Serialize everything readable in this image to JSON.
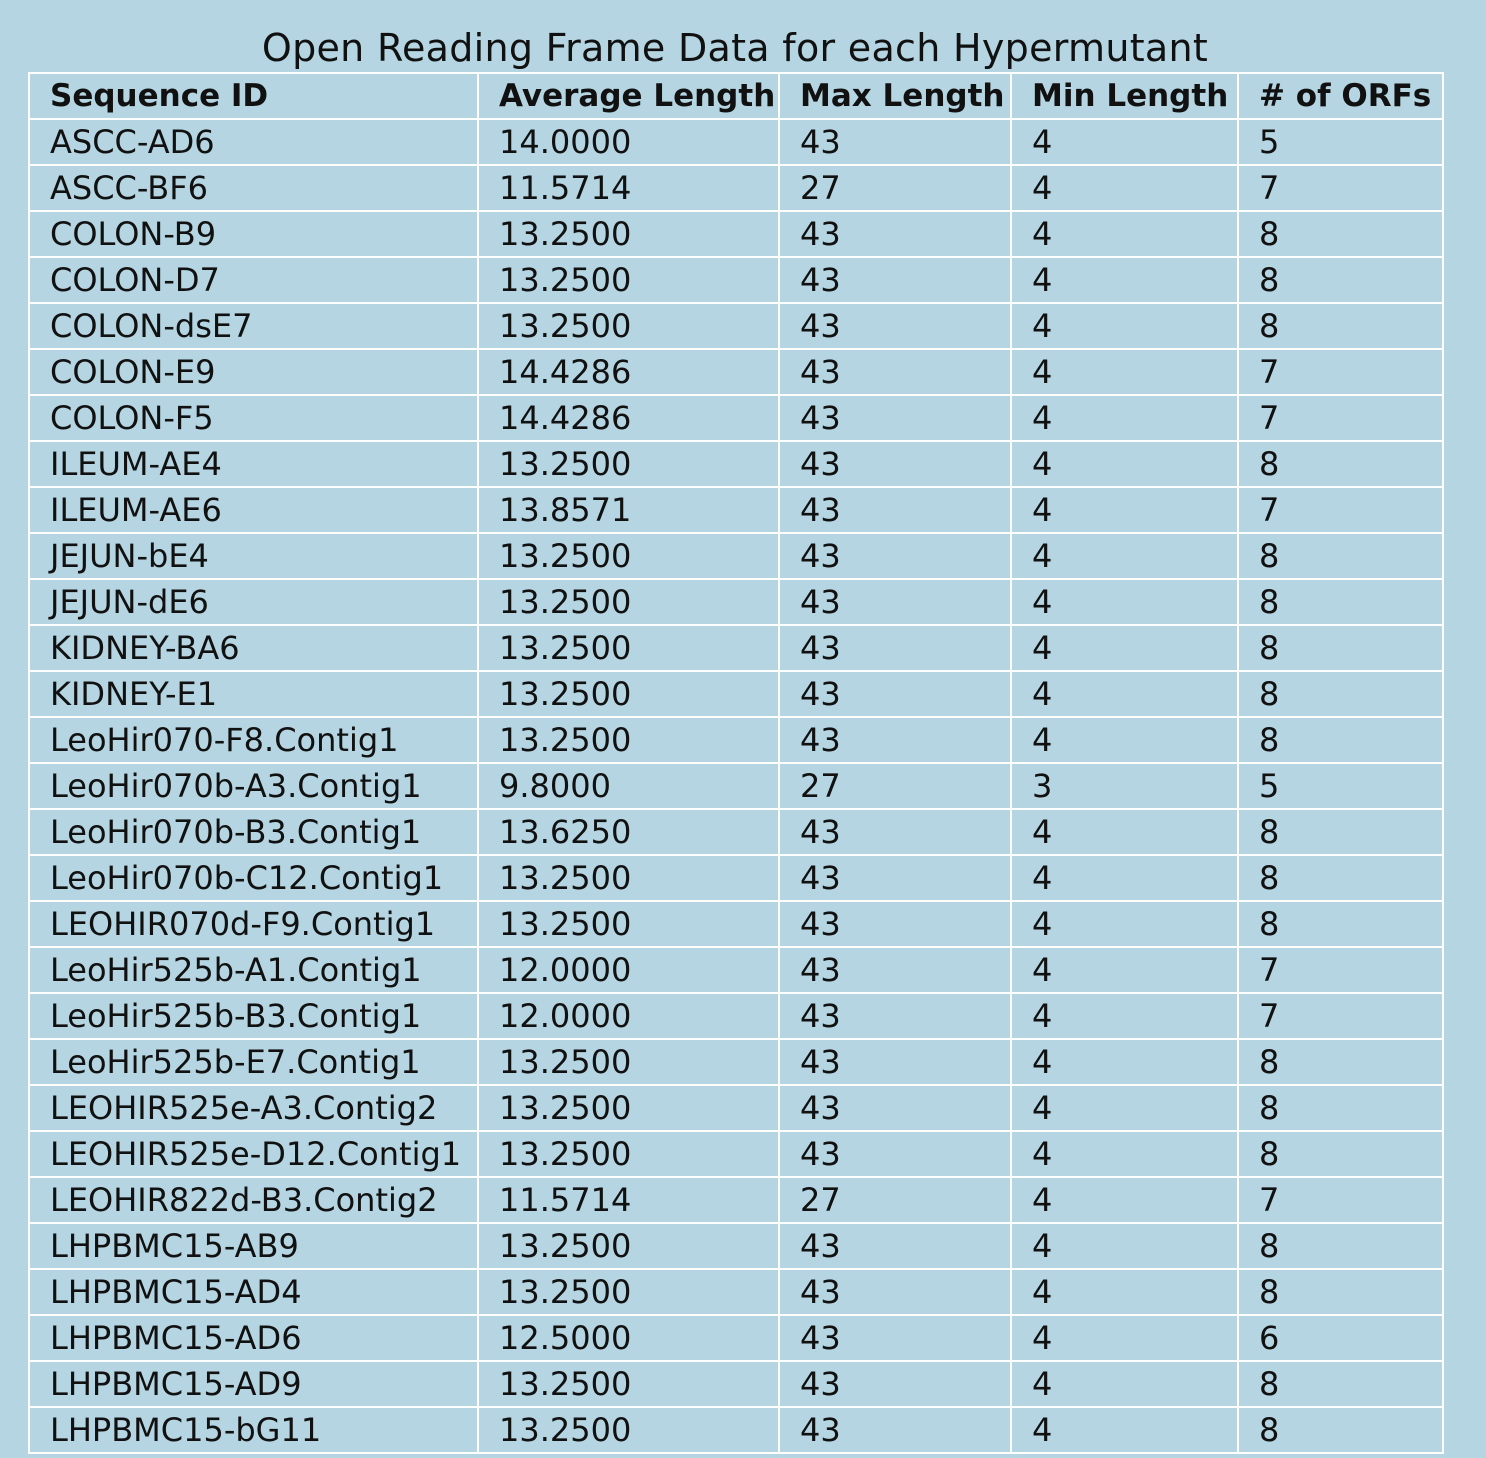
{
  "title": "Open Reading Frame Data for each Hypermutant",
  "table": {
    "columns": [
      "Sequence ID",
      "Average Length",
      "Max Length",
      "Min Length",
      "# of ORFs"
    ],
    "rows": [
      [
        "ASCC-AD6",
        "14.0000",
        "43",
        "4",
        "5"
      ],
      [
        "ASCC-BF6",
        "11.5714",
        "27",
        "4",
        "7"
      ],
      [
        "COLON-B9",
        "13.2500",
        "43",
        "4",
        "8"
      ],
      [
        "COLON-D7",
        "13.2500",
        "43",
        "4",
        "8"
      ],
      [
        "COLON-dsE7",
        "13.2500",
        "43",
        "4",
        "8"
      ],
      [
        "COLON-E9",
        "14.4286",
        "43",
        "4",
        "7"
      ],
      [
        "COLON-F5",
        "14.4286",
        "43",
        "4",
        "7"
      ],
      [
        "ILEUM-AE4",
        "13.2500",
        "43",
        "4",
        "8"
      ],
      [
        "ILEUM-AE6",
        "13.8571",
        "43",
        "4",
        "7"
      ],
      [
        "JEJUN-bE4",
        "13.2500",
        "43",
        "4",
        "8"
      ],
      [
        "JEJUN-dE6",
        "13.2500",
        "43",
        "4",
        "8"
      ],
      [
        "KIDNEY-BA6",
        "13.2500",
        "43",
        "4",
        "8"
      ],
      [
        "KIDNEY-E1",
        "13.2500",
        "43",
        "4",
        "8"
      ],
      [
        "LeoHir070-F8.Contig1",
        "13.2500",
        "43",
        "4",
        "8"
      ],
      [
        "LeoHir070b-A3.Contig1",
        "9.8000",
        "27",
        "3",
        "5"
      ],
      [
        "LeoHir070b-B3.Contig1",
        "13.6250",
        "43",
        "4",
        "8"
      ],
      [
        "LeoHir070b-C12.Contig1",
        "13.2500",
        "43",
        "4",
        "8"
      ],
      [
        "LEOHIR070d-F9.Contig1",
        "13.2500",
        "43",
        "4",
        "8"
      ],
      [
        "LeoHir525b-A1.Contig1",
        "12.0000",
        "43",
        "4",
        "7"
      ],
      [
        "LeoHir525b-B3.Contig1",
        "12.0000",
        "43",
        "4",
        "7"
      ],
      [
        "LeoHir525b-E7.Contig1",
        "13.2500",
        "43",
        "4",
        "8"
      ],
      [
        "LEOHIR525e-A3.Contig2",
        "13.2500",
        "43",
        "4",
        "8"
      ],
      [
        "LEOHIR525e-D12.Contig1",
        "13.2500",
        "43",
        "4",
        "8"
      ],
      [
        "LEOHIR822d-B3.Contig2",
        "11.5714",
        "27",
        "4",
        "7"
      ],
      [
        "LHPBMC15-AB9",
        "13.2500",
        "43",
        "4",
        "8"
      ],
      [
        "LHPBMC15-AD4",
        "13.2500",
        "43",
        "4",
        "8"
      ],
      [
        "LHPBMC15-AD6",
        "12.5000",
        "43",
        "4",
        "6"
      ],
      [
        "LHPBMC15-AD9",
        "13.2500",
        "43",
        "4",
        "8"
      ],
      [
        "LHPBMC15-bG11",
        "13.2500",
        "43",
        "4",
        "8"
      ]
    ]
  }
}
